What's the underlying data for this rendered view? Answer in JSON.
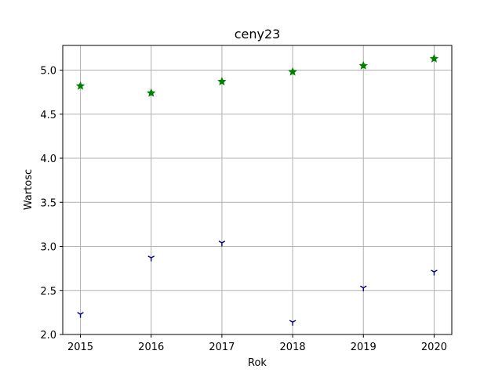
{
  "chart_data": {
    "type": "scatter",
    "title": "ceny23",
    "xlabel": "Rok",
    "ylabel": "Wartosc",
    "x": [
      2015,
      2016,
      2017,
      2018,
      2019,
      2020
    ],
    "xlim": [
      2014.75,
      2020.25
    ],
    "ylim": [
      2.0,
      5.28
    ],
    "xticks": [
      "2015",
      "2016",
      "2017",
      "2018",
      "2019",
      "2020"
    ],
    "yticks": [
      "2.0",
      "2.5",
      "3.0",
      "3.5",
      "4.0",
      "4.5",
      "5.0"
    ],
    "grid": true,
    "series": [
      {
        "marker": "star",
        "color": "#008000",
        "values": [
          4.82,
          4.74,
          4.87,
          4.98,
          5.05,
          5.13
        ]
      },
      {
        "marker": "tri-down",
        "color": "#000080",
        "values": [
          2.23,
          2.87,
          3.04,
          2.14,
          2.53,
          2.71
        ]
      }
    ]
  }
}
